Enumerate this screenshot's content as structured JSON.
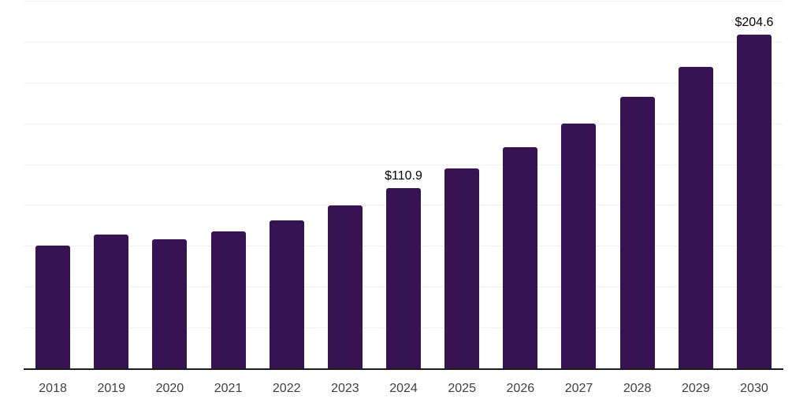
{
  "chart": {
    "bar_color": "#371353",
    "grid_color": "#f1f1f1",
    "axis_color": "#1c1c1c",
    "tick_label_color": "#3f3f3f",
    "data_label_color": "#000000",
    "background_color": "#ffffff"
  },
  "chart_data": {
    "type": "bar",
    "title": "",
    "xlabel": "",
    "ylabel": "",
    "categories": [
      "2018",
      "2019",
      "2020",
      "2021",
      "2022",
      "2023",
      "2024",
      "2025",
      "2026",
      "2027",
      "2028",
      "2029",
      "2030"
    ],
    "values": [
      75.8,
      82.3,
      79.5,
      84.3,
      91.3,
      100.1,
      110.9,
      122.8,
      136.1,
      150.1,
      166.6,
      185.1,
      204.6
    ],
    "annotations": [
      {
        "category": "2024",
        "label": "$110.9"
      },
      {
        "category": "2030",
        "label": "$204.6"
      }
    ],
    "ylim": [
      0,
      225
    ],
    "gridline_step": 25,
    "grid": "horizontal",
    "legend": "none",
    "y_axis_labels_visible": false,
    "currency_prefix": "$"
  }
}
